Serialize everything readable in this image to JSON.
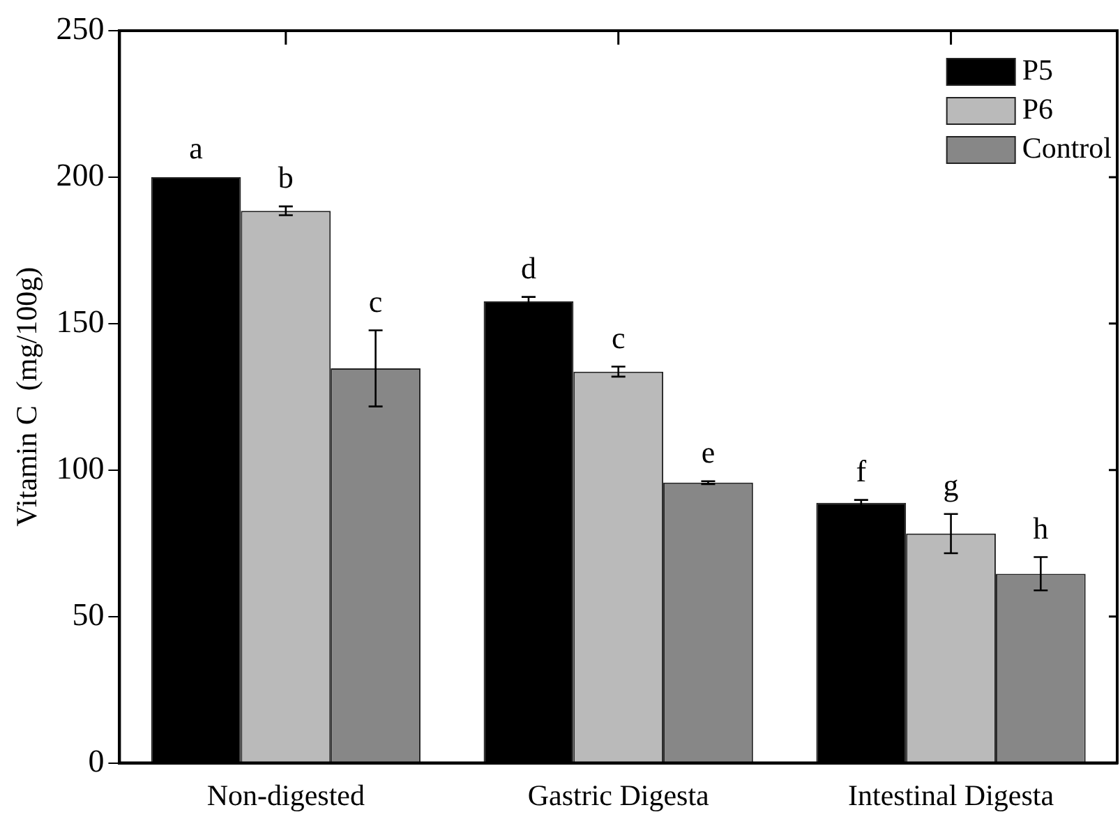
{
  "chart_data": {
    "type": "bar",
    "ylabel": "Vitamin C  (mg/100g)",
    "categories": [
      "Non-digested",
      "Gastric Digesta",
      "Intestinal Digesta"
    ],
    "series": [
      {
        "name": "P5",
        "color": "#000000",
        "values": [
          200,
          157.6,
          88.8
        ],
        "errors": [
          null,
          1.5,
          1
        ],
        "value_labels": [
          "a",
          "d",
          "f"
        ]
      },
      {
        "name": "P6",
        "color": "#bababa",
        "values": [
          188.5,
          133.6,
          78.3
        ],
        "errors": [
          1.5,
          1.7,
          6.7
        ],
        "value_labels": [
          "b",
          "c",
          "g"
        ]
      },
      {
        "name": "Control",
        "color": "#878787",
        "values": [
          134.7,
          95.7,
          64.6
        ],
        "errors": [
          13,
          0.5,
          5.7
        ],
        "value_labels": [
          "c",
          "e",
          "h"
        ]
      }
    ],
    "ylim": [
      0,
      250
    ],
    "yticks": [
      0,
      50,
      100,
      150,
      200,
      250
    ],
    "grid": false,
    "legend": "top right"
  }
}
